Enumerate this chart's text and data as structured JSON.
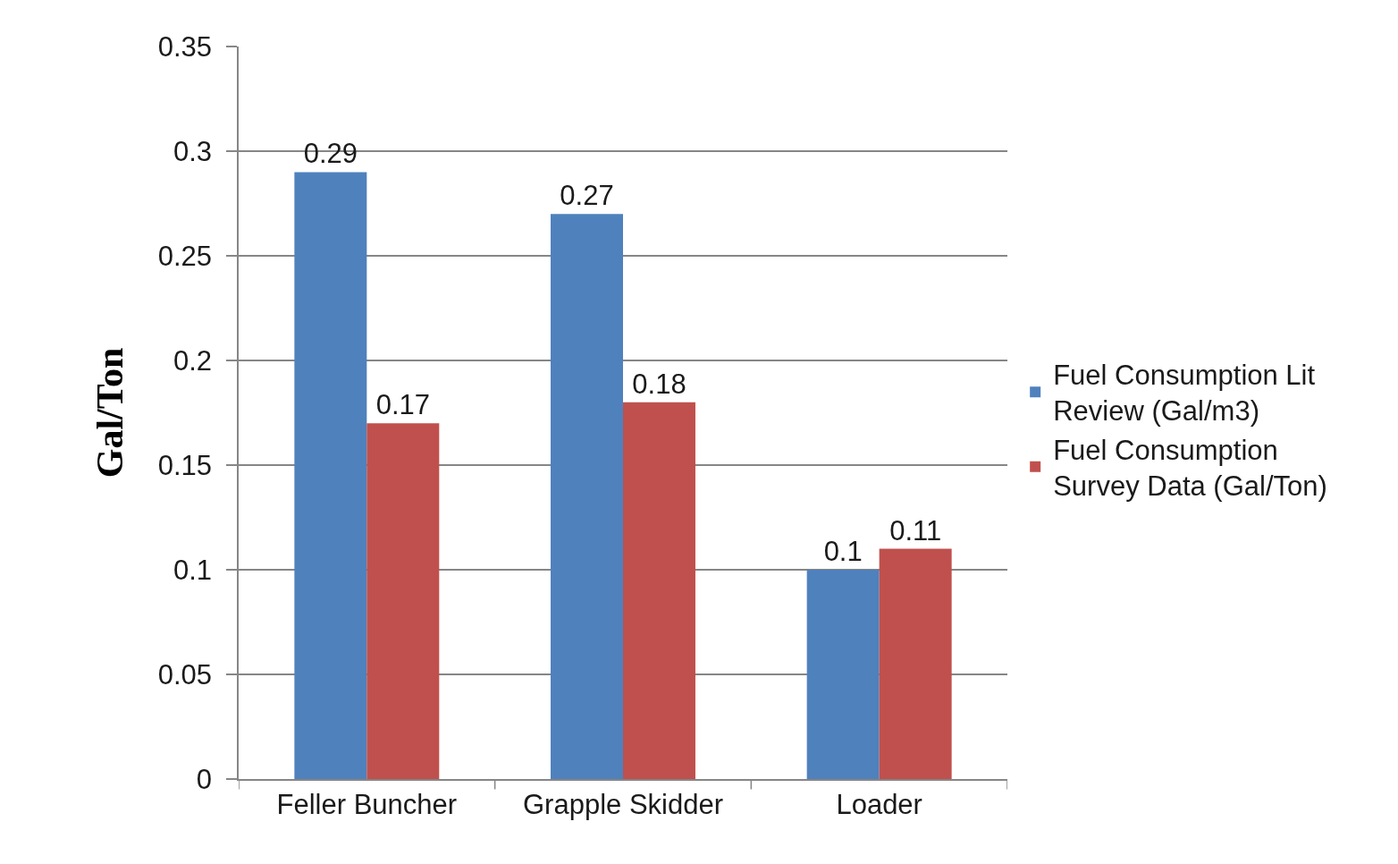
{
  "chart_data": {
    "type": "bar",
    "ylabel": "Gal/Ton",
    "categories": [
      "Feller Buncher",
      "Grapple Skidder",
      "Loader"
    ],
    "series": [
      {
        "name": "Fuel Consumption Lit Review (Gal/m3)",
        "color": "#4f81bd",
        "values": [
          0.29,
          0.27,
          0.1
        ]
      },
      {
        "name": "Fuel Consumption Survey Data (Gal/Ton)",
        "color": "#c0504d",
        "values": [
          0.17,
          0.18,
          0.11
        ]
      }
    ],
    "ylim": [
      0,
      0.35
    ],
    "yticks": [
      0,
      0.05,
      0.1,
      0.15,
      0.2,
      0.25,
      0.3,
      0.35
    ],
    "grid": "y",
    "legend": "right",
    "data_labels": true
  }
}
